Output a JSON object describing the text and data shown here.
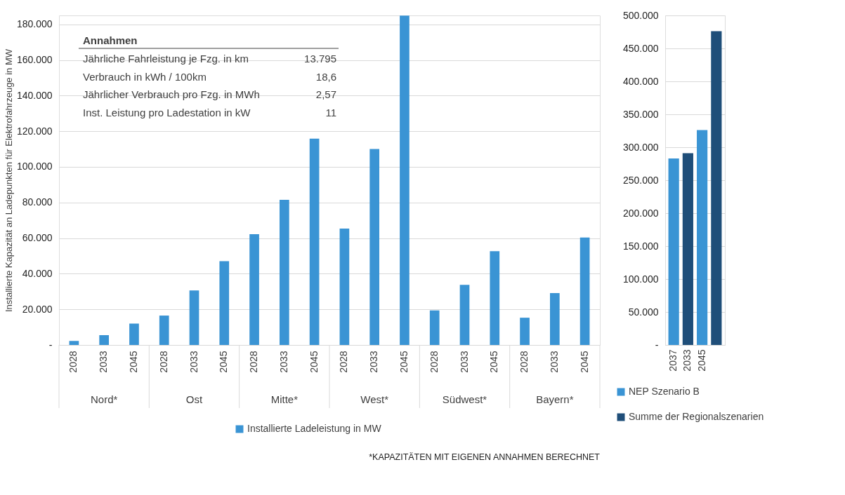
{
  "chart_data": [
    {
      "type": "bar",
      "ylabel": "Installierte Kapazität an Ladepunkten für Elektrofahrzeuge in MW",
      "categories": [
        "2028",
        "2033",
        "2045",
        "2028",
        "2033",
        "2045",
        "2028",
        "2033",
        "2045",
        "2028",
        "2033",
        "2045",
        "2028",
        "2033",
        "2045",
        "2028",
        "2033",
        "2045"
      ],
      "series": [
        {
          "name": "Installierte Ladeleistung in MW",
          "color": "#3a94d4",
          "values": [
            2300,
            5500,
            12000,
            16500,
            30600,
            47000,
            62200,
            81500,
            115800,
            65300,
            110000,
            184900,
            19400,
            33800,
            52600,
            15300,
            29100,
            60300
          ]
        }
      ],
      "ylim": [
        0,
        185000
      ],
      "yticks": [
        {
          "value": 0,
          "label": "-"
        },
        {
          "value": 20000,
          "label": "20.000"
        },
        {
          "value": 40000,
          "label": "40.000"
        },
        {
          "value": 60000,
          "label": "60.000"
        },
        {
          "value": 80000,
          "label": "80.000"
        },
        {
          "value": 100000,
          "label": "100.000"
        },
        {
          "value": 120000,
          "label": "120.000"
        },
        {
          "value": 140000,
          "label": "140.000"
        },
        {
          "value": 160000,
          "label": "160.000"
        },
        {
          "value": 180000,
          "label": "180.000"
        }
      ],
      "grid": "y",
      "legend": "bottom",
      "annotations": [
        "Nord*",
        "Ost",
        "Mitte*",
        "West*",
        "Südwest*",
        "Bayern*",
        "Annahmen",
        "Jährliche Fahrleistung je Fzg. in km",
        "13.795",
        "Verbrauch in kWh / 100km",
        "18,6",
        "Jährlicher Verbrauch pro Fzg. in MWh",
        "2,57",
        "Inst. Leistung pro Ladestation in kW",
        "11",
        "*KAPAZITÄTEN MIT EIGENEN ANNAHMEN BERECHNET"
      ]
    },
    {
      "type": "bar",
      "categories": [
        "2037",
        "2033",
        "2045",
        null
      ],
      "series": [
        {
          "name": "NEP Szenario B",
          "color": "#3a94d4",
          "values": [
            283000,
            null,
            326000,
            null
          ]
        },
        {
          "name": "Summe der Regionalszenarien",
          "color": "#1f4e79",
          "values": [
            null,
            291000,
            null,
            476000
          ]
        }
      ],
      "ylim": [
        0,
        500000
      ],
      "yticks": [
        {
          "value": 0,
          "label": "-"
        },
        {
          "value": 50000,
          "label": "50.000"
        },
        {
          "value": 100000,
          "label": "100.000"
        },
        {
          "value": 150000,
          "label": "150.000"
        },
        {
          "value": 200000,
          "label": "200.000"
        },
        {
          "value": 250000,
          "label": "250.000"
        },
        {
          "value": 300000,
          "label": "300.000"
        },
        {
          "value": 350000,
          "label": "350.000"
        },
        {
          "value": 400000,
          "label": "400.000"
        },
        {
          "value": 450000,
          "label": "450.000"
        },
        {
          "value": 500000,
          "label": "500.000"
        }
      ],
      "grid": "y",
      "legend": "bottom"
    }
  ]
}
